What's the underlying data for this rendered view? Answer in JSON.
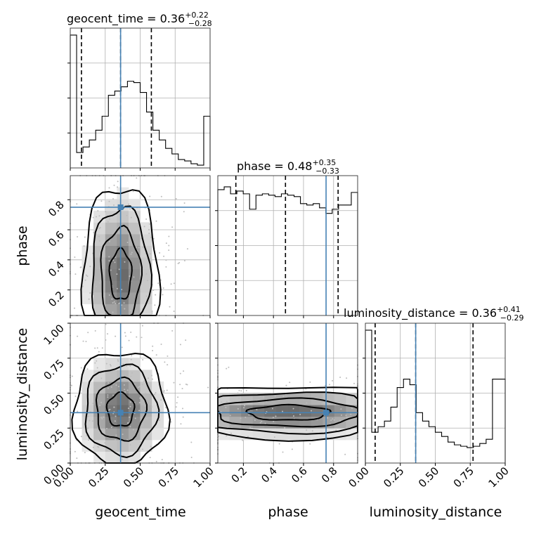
{
  "params": [
    "geocent_time",
    "phase",
    "luminosity_distance"
  ],
  "colors": {
    "truth": "#4682b4",
    "line": "#000000",
    "scatter": "#bdbdbd",
    "grid": "#b0b0b0"
  },
  "chart_data": {
    "type": "corner",
    "grid": true,
    "parameters": [
      {
        "name": "geocent_time",
        "title_prefix": "geocent_time = ",
        "median": "0.36",
        "plus": "+0.22",
        "minus": "−0.28",
        "range": [
          0,
          1
        ],
        "ticks": [
          0,
          0.25,
          0.5,
          0.75,
          1.0
        ],
        "tick_labels": [
          "0.00",
          "0.25",
          "0.50",
          "0.75",
          "1.00"
        ],
        "quantiles": [
          0.08,
          0.36,
          0.58
        ],
        "truth": 0.36,
        "hist": [
          0.95,
          0.11,
          0.15,
          0.2,
          0.27,
          0.37,
          0.52,
          0.55,
          0.58,
          0.62,
          0.61,
          0.54,
          0.4,
          0.27,
          0.2,
          0.14,
          0.1,
          0.06,
          0.05,
          0.03,
          0.02,
          0.37
        ]
      },
      {
        "name": "phase",
        "title_prefix": "phase = ",
        "median": "0.48",
        "plus": "+0.35",
        "minus": "−0.33",
        "range": [
          0.03,
          0.96
        ],
        "ticks": [
          0.2,
          0.4,
          0.6,
          0.8
        ],
        "tick_labels": [
          "0.2",
          "0.4",
          "0.6",
          "0.8"
        ],
        "quantiles": [
          0.15,
          0.48,
          0.83
        ],
        "truth": 0.75,
        "hist": [
          0.9,
          0.92,
          0.87,
          0.89,
          0.87,
          0.76,
          0.86,
          0.87,
          0.86,
          0.85,
          0.87,
          0.86,
          0.85,
          0.8,
          0.79,
          0.8,
          0.77,
          0.73,
          0.76,
          0.79,
          0.79,
          0.88
        ]
      },
      {
        "name": "luminosity_distance",
        "title_prefix": "luminosity_distance = ",
        "median": "0.36",
        "plus": "+0.41",
        "minus": "−0.29",
        "range": [
          0,
          1
        ],
        "ticks": [
          0,
          0.25,
          0.5,
          0.75,
          1.0
        ],
        "tick_labels": [
          "0.00",
          "0.25",
          "0.50",
          "0.75",
          "1.00"
        ],
        "quantiles": [
          0.07,
          0.36,
          0.77
        ],
        "truth": 0.36,
        "hist": [
          0.95,
          0.22,
          0.26,
          0.3,
          0.4,
          0.54,
          0.6,
          0.56,
          0.36,
          0.3,
          0.26,
          0.22,
          0.19,
          0.15,
          0.13,
          0.12,
          0.11,
          0.12,
          0.14,
          0.17,
          0.6,
          0.6
        ]
      }
    ],
    "truth_point_2d": {
      "geocent_time": 0.36,
      "phase": 0.75,
      "luminosity_distance": 0.36
    }
  }
}
